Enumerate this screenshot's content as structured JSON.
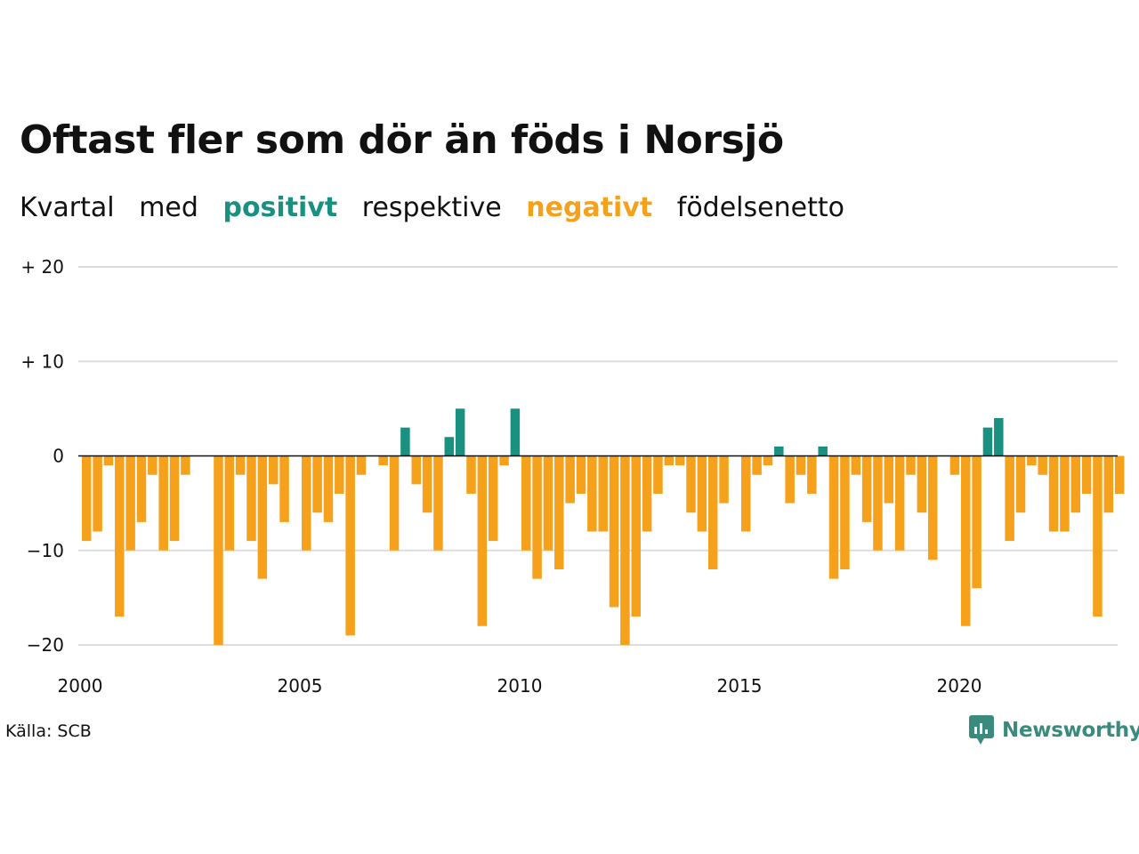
{
  "title": "Oftast fler som dör än föds i Norsjö",
  "subtitle": {
    "w1": "Kvartal",
    "w2": "med",
    "w3": "positivt",
    "w4": "respektive",
    "w5": "negativt",
    "w6": "födelsenetto"
  },
  "source": "Källa: SCB",
  "logo_text": "Newsworthy",
  "colors": {
    "positive": "#1a9080",
    "negative": "#f5a11c",
    "grid": "#dddddd",
    "axis": "#111111",
    "logo": "#3a8a7e"
  },
  "chart_data": {
    "type": "bar",
    "ylim": [
      -20,
      20
    ],
    "yticks": [
      {
        "value": 20,
        "label": "+ 20"
      },
      {
        "value": 10,
        "label": "+ 10"
      },
      {
        "value": 0,
        "label": "0"
      },
      {
        "value": -10,
        "label": "−10"
      },
      {
        "value": -20,
        "label": "−20"
      }
    ],
    "xticks": [
      {
        "year": 2000,
        "label": "2000"
      },
      {
        "year": 2005,
        "label": "2005"
      },
      {
        "year": 2010,
        "label": "2010"
      },
      {
        "year": 2015,
        "label": "2015"
      },
      {
        "year": 2020,
        "label": "2020"
      }
    ],
    "x_start": "2000 Q1",
    "series": [
      {
        "values": [
          -9,
          -8,
          -1,
          -17,
          -10,
          -7,
          -2,
          -10,
          -9,
          -2,
          0,
          0,
          -20,
          -10,
          -2,
          -9,
          -13,
          -3,
          -7,
          0,
          -10,
          -6,
          -7,
          -4,
          -19,
          -2,
          0,
          -1,
          -10,
          3,
          -3,
          -6,
          -10,
          2,
          5,
          -4,
          -18,
          -9,
          -1,
          5,
          -10,
          -13,
          -10,
          -12,
          -5,
          -4,
          -8,
          -8,
          -16,
          -20,
          -17,
          -8,
          -4,
          -1,
          -1,
          -6,
          -8,
          -12,
          -5,
          0,
          -8,
          -2,
          -1,
          1,
          -5,
          -2,
          -4,
          1,
          -13,
          -12,
          -2,
          -7,
          -10,
          -5,
          -10,
          -2,
          -6,
          -11,
          0,
          -2,
          -18,
          -14,
          3,
          4,
          -9,
          -6,
          -1,
          -2,
          -8,
          -8,
          -6,
          -4,
          -17,
          -6,
          -4
        ]
      }
    ]
  }
}
